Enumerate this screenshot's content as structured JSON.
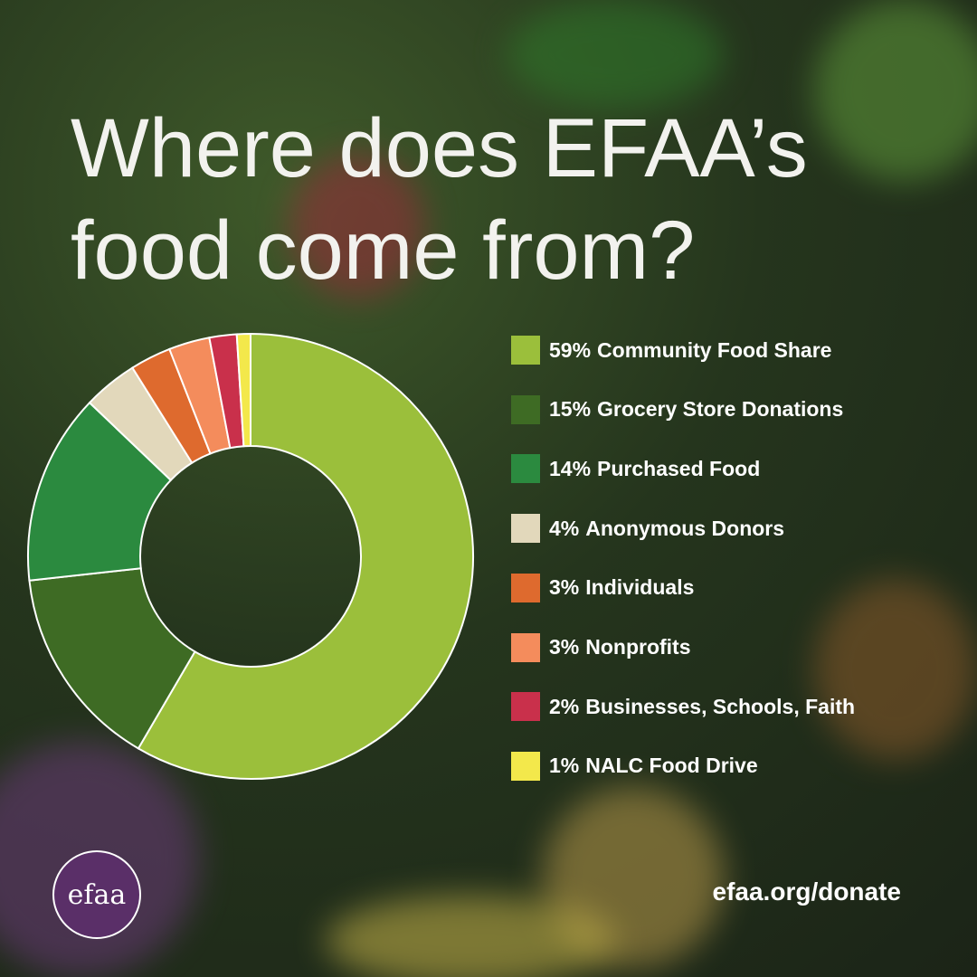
{
  "chart_data": {
    "type": "donut",
    "title": "Where does EFAA’s food come from?",
    "categories": [
      "Community Food Share",
      "Grocery Store Donations",
      "Purchased Food",
      "Anonymous Donors",
      "Individuals",
      "Nonprofits",
      "Businesses, Schools, Faith",
      "NALC Food Drive"
    ],
    "values": [
      59,
      15,
      14,
      4,
      3,
      3,
      2,
      1
    ],
    "value_labels": [
      "59%",
      "15%",
      "14%",
      "4%",
      "3%",
      "3%",
      "2%",
      "1%"
    ],
    "colors": [
      "#9bbf3b",
      "#3e6b24",
      "#2b8a3f",
      "#e2d8bb",
      "#de6a2e",
      "#f48c5c",
      "#c9304b",
      "#f3e84b"
    ]
  },
  "logo": "efaa",
  "link": "efaa.org/donate"
}
